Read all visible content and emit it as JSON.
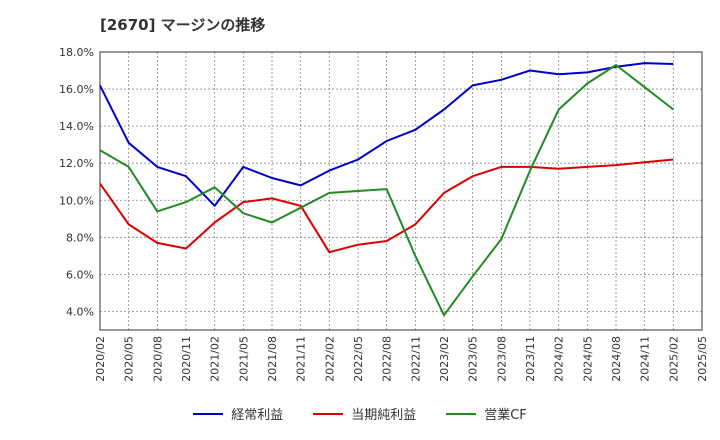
{
  "chart_data": {
    "type": "line",
    "title": "[2670]  マージンの推移",
    "x": [
      "2020/02",
      "2020/05",
      "2020/08",
      "2020/11",
      "2021/02",
      "2021/05",
      "2021/08",
      "2021/11",
      "2022/02",
      "2022/05",
      "2022/08",
      "2022/11",
      "2023/02",
      "2023/05",
      "2023/08",
      "2023/11",
      "2024/02",
      "2024/05",
      "2024/08",
      "2024/11",
      "2025/02"
    ],
    "x_tick_labels": [
      "2020/02",
      "2020/05",
      "2020/08",
      "2020/11",
      "2021/02",
      "2021/05",
      "2021/08",
      "2021/11",
      "2022/02",
      "2022/05",
      "2022/08",
      "2022/11",
      "2023/02",
      "2023/05",
      "2023/08",
      "2023/11",
      "2024/02",
      "2024/05",
      "2024/08",
      "2024/11",
      "2025/02",
      "2025/05"
    ],
    "y_ticks": [
      "4.0%",
      "6.0%",
      "8.0%",
      "10.0%",
      "12.0%",
      "14.0%",
      "16.0%",
      "18.0%"
    ],
    "ylim": [
      3.0,
      18.0
    ],
    "grid": true,
    "legend_position": "bottom",
    "series": [
      {
        "name": "経常利益",
        "color": "#0000cc",
        "values": [
          16.2,
          13.1,
          11.8,
          11.3,
          9.7,
          11.8,
          11.2,
          10.8,
          11.6,
          12.2,
          13.2,
          13.8,
          14.9,
          16.2,
          16.5,
          17.0,
          16.8,
          16.9,
          17.2,
          17.4,
          17.35
        ]
      },
      {
        "name": "当期純利益",
        "color": "#dd0000",
        "values": [
          10.9,
          8.7,
          7.7,
          7.4,
          8.8,
          9.9,
          10.1,
          9.7,
          7.2,
          7.6,
          7.8,
          8.7,
          10.4,
          11.3,
          11.8,
          11.8,
          11.7,
          11.8,
          11.9,
          12.05,
          12.2
        ]
      },
      {
        "name": "営業CF",
        "color": "#228b22",
        "values": [
          12.7,
          11.8,
          9.4,
          9.9,
          10.7,
          9.3,
          8.8,
          9.6,
          10.4,
          10.5,
          10.6,
          7.0,
          3.8,
          5.9,
          7.9,
          11.6,
          14.9,
          16.3,
          17.3,
          16.1,
          14.9
        ]
      }
    ]
  }
}
